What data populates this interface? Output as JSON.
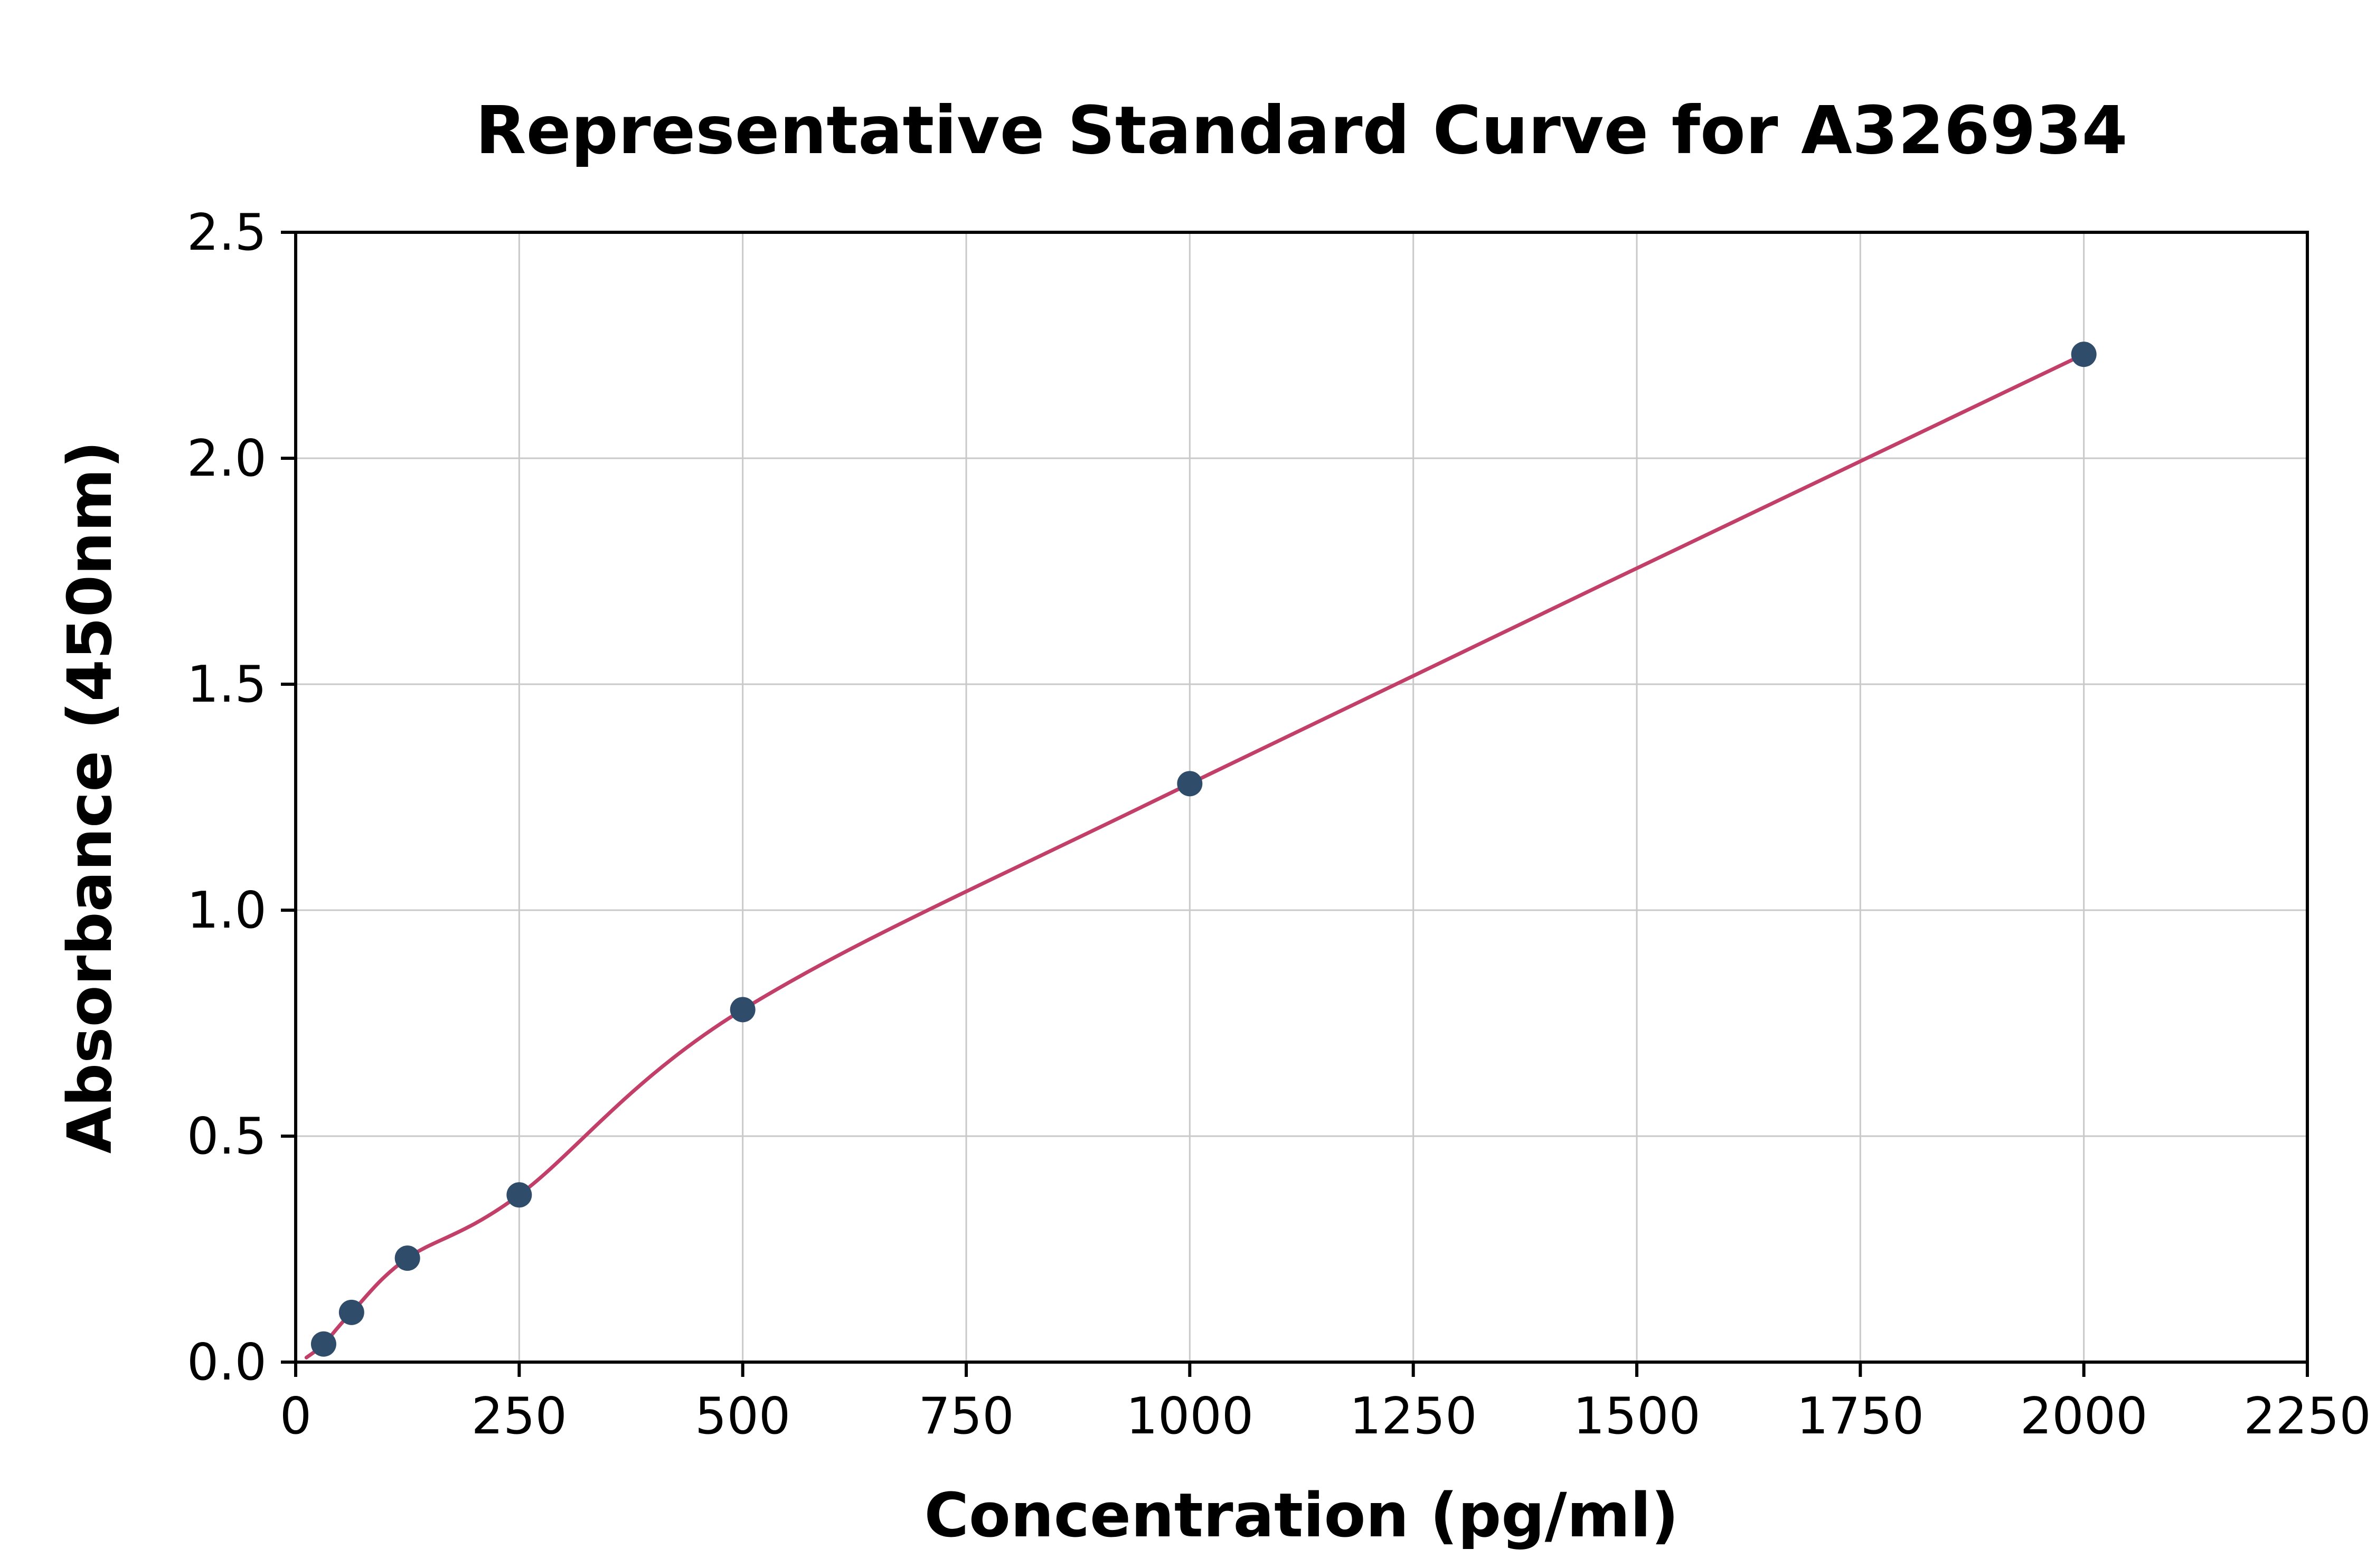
{
  "chart_data": {
    "type": "scatter",
    "title": "Representative Standard Curve for A326934",
    "xlabel": "Concentration (pg/ml)",
    "ylabel": "Absorbance (450nm)",
    "xlim": [
      0,
      2250
    ],
    "ylim": [
      0,
      2.5
    ],
    "grid": true,
    "legend": "none",
    "x_ticks": [
      0,
      250,
      500,
      750,
      1000,
      1250,
      1500,
      1750,
      2000,
      2250
    ],
    "x_tick_labels": [
      "0",
      "250",
      "500",
      "750",
      "1000",
      "1250",
      "1500",
      "1750",
      "2000",
      "2250"
    ],
    "y_ticks": [
      0,
      0.5,
      1.0,
      1.5,
      2.0,
      2.5
    ],
    "y_tick_labels": [
      "0.0",
      "0.5",
      "1.0",
      "1.5",
      "2.0",
      "2.5"
    ],
    "series": [
      {
        "name": "standard-points",
        "kind": "scatter",
        "points": [
          [
            31.25,
            0.04
          ],
          [
            62.5,
            0.11
          ],
          [
            125,
            0.23
          ],
          [
            250,
            0.37
          ],
          [
            500,
            0.78
          ],
          [
            1000,
            1.28
          ],
          [
            2000,
            2.23
          ]
        ]
      },
      {
        "name": "fitted-curve",
        "kind": "line",
        "curve_start": [
          12,
          0.01
        ]
      }
    ],
    "colors": {
      "point_color": "#2f4d6b",
      "curve_color": "#c23f6a",
      "grid_color": "#c9c9c9",
      "axis_color": "#000000",
      "background": "#ffffff"
    }
  }
}
